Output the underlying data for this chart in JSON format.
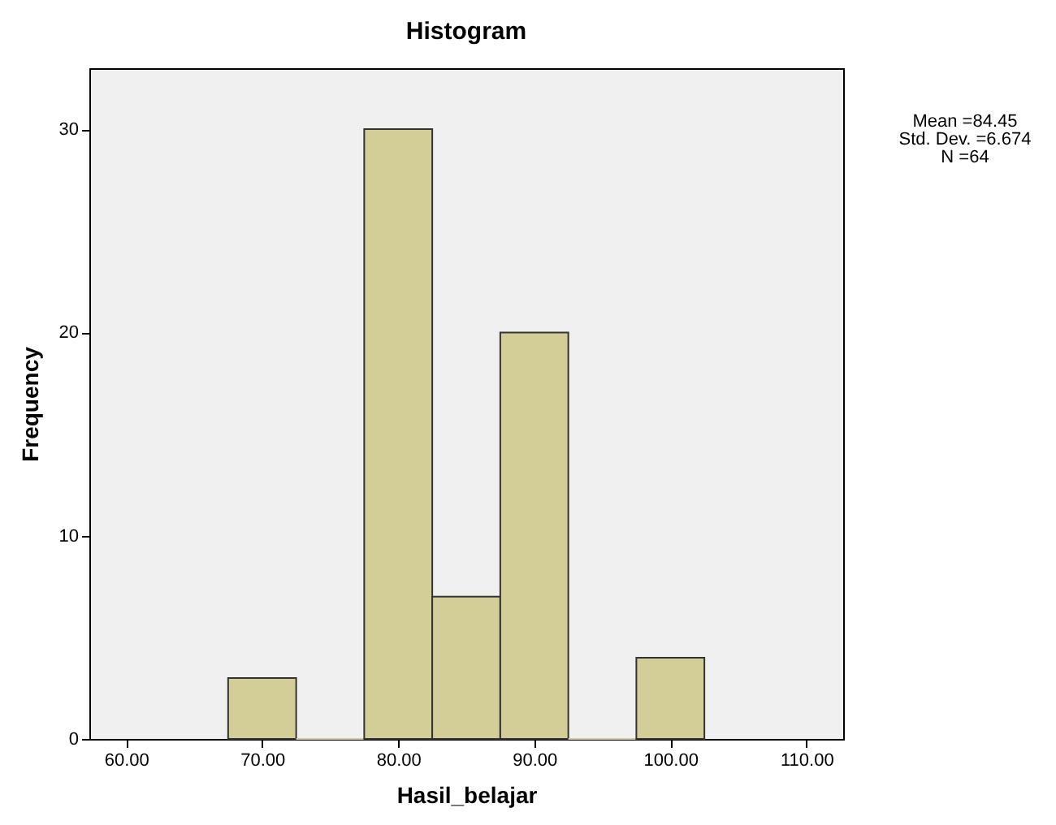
{
  "chart_data": {
    "type": "histogram",
    "title": "Histogram",
    "xlabel": "Hasil_belajar",
    "ylabel": "Frequency",
    "bins": [
      67.5,
      72.5,
      77.5,
      82.5,
      87.5,
      92.5,
      97.5,
      102.5
    ],
    "values": [
      3,
      0,
      30,
      7,
      20,
      0,
      4
    ],
    "color": "#d3ce97",
    "xlim": [
      57.3,
      112.7
    ],
    "xticks": [
      {
        "value": 60,
        "label": "60.00"
      },
      {
        "value": 70,
        "label": "70.00"
      },
      {
        "value": 80,
        "label": "80.00"
      },
      {
        "value": 90,
        "label": "90.00"
      },
      {
        "value": 100,
        "label": "100.00"
      },
      {
        "value": 110,
        "label": "110.00"
      }
    ],
    "ylim": [
      0,
      33
    ],
    "yticks": [
      0,
      10,
      20,
      30
    ],
    "grid": false,
    "annotations": [
      "Mean =84.45",
      "Std. Dev. =6.674",
      "N =64"
    ]
  }
}
